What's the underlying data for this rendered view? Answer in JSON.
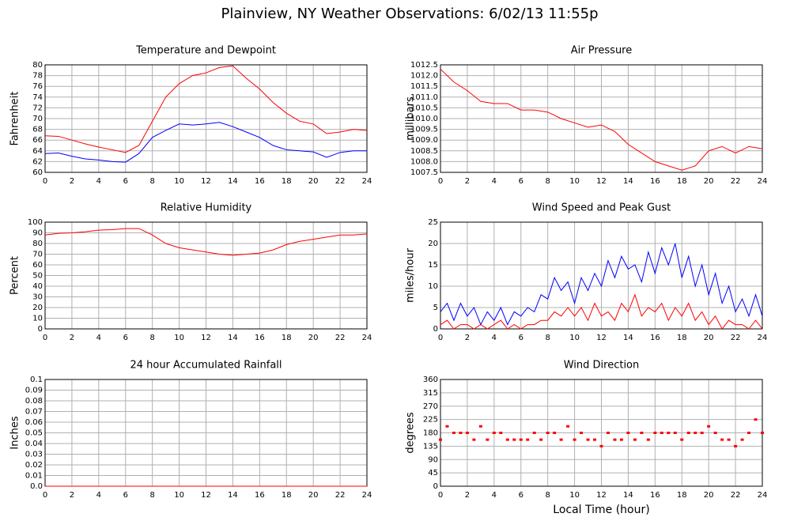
{
  "title": "Plainview, NY Weather Observations: 6/02/13 11:55p",
  "chart_data": [
    {
      "type": "line",
      "title": "Temperature and Dewpoint",
      "ylabel": "Fahrenheit",
      "x": [
        0,
        1,
        2,
        3,
        4,
        5,
        6,
        7,
        8,
        9,
        10,
        11,
        12,
        13,
        14,
        15,
        16,
        17,
        18,
        19,
        20,
        21,
        22,
        23,
        24
      ],
      "series": [
        {
          "color": "#ff0000",
          "values": [
            66.8,
            66.7,
            66,
            65.3,
            64.7,
            64.2,
            63.7,
            65,
            69.5,
            74,
            76.5,
            78,
            78.5,
            79.5,
            79.8,
            77.5,
            75.5,
            73,
            71,
            69.5,
            69,
            67.2,
            67.5,
            68,
            67.8
          ]
        },
        {
          "color": "#0000ff",
          "values": [
            63.5,
            63.6,
            63,
            62.5,
            62.3,
            62,
            61.9,
            63.5,
            66.5,
            67.8,
            69,
            68.8,
            69,
            69.3,
            68.5,
            67.5,
            66.5,
            65,
            64.2,
            64,
            63.8,
            62.8,
            63.7,
            64,
            64
          ]
        }
      ],
      "xlim": [
        0,
        24
      ],
      "xticks": [
        0,
        2,
        4,
        6,
        8,
        10,
        12,
        14,
        16,
        18,
        20,
        22,
        24
      ],
      "ylim": [
        60,
        80
      ],
      "yticks": [
        60,
        62,
        64,
        66,
        68,
        70,
        72,
        74,
        76,
        78,
        80
      ],
      "grid": true
    },
    {
      "type": "line",
      "title": "Air Pressure",
      "ylabel": "millibars",
      "x": [
        0,
        1,
        2,
        3,
        4,
        5,
        6,
        7,
        8,
        9,
        10,
        11,
        12,
        13,
        14,
        15,
        16,
        17,
        18,
        19,
        20,
        21,
        22,
        23,
        24
      ],
      "series": [
        {
          "color": "#ff0000",
          "values": [
            1012.3,
            1011.7,
            1011.3,
            1010.8,
            1010.7,
            1010.7,
            1010.4,
            1010.4,
            1010.3,
            1010.0,
            1009.8,
            1009.6,
            1009.7,
            1009.4,
            1008.8,
            1008.4,
            1008.0,
            1007.8,
            1007.6,
            1007.8,
            1008.5,
            1008.7,
            1008.4,
            1008.7,
            1008.6
          ]
        }
      ],
      "xlim": [
        0,
        24
      ],
      "xticks": [
        0,
        2,
        4,
        6,
        8,
        10,
        12,
        14,
        16,
        18,
        20,
        22,
        24
      ],
      "ylim": [
        1007.5,
        1012.5
      ],
      "yticks": [
        1007.5,
        {
          "value": 1008,
          "label": "1008.0"
        },
        1008.5,
        {
          "value": 1009,
          "label": "1009.0"
        },
        1009.5,
        {
          "value": 1010,
          "label": "1010.0"
        },
        1010.5,
        {
          "value": 1011,
          "label": "1011.0"
        },
        1011.5,
        {
          "value": 1012,
          "label": "1012.0"
        },
        1012.5
      ],
      "grid": true
    },
    {
      "type": "line",
      "title": "Relative Humidity",
      "ylabel": "Percent",
      "x": [
        0,
        1,
        2,
        3,
        4,
        5,
        6,
        7,
        8,
        9,
        10,
        11,
        12,
        13,
        14,
        15,
        16,
        17,
        18,
        19,
        20,
        21,
        22,
        23,
        24
      ],
      "series": [
        {
          "color": "#ff0000",
          "values": [
            88,
            89.5,
            90,
            91,
            92.5,
            93,
            94,
            94,
            88,
            80,
            76,
            74,
            72,
            70,
            69,
            70,
            71,
            74,
            79,
            82,
            84,
            86,
            88,
            88,
            89
          ]
        }
      ],
      "xlim": [
        0,
        24
      ],
      "xticks": [
        0,
        2,
        4,
        6,
        8,
        10,
        12,
        14,
        16,
        18,
        20,
        22,
        24
      ],
      "ylim": [
        0,
        100
      ],
      "yticks": [
        0,
        10,
        20,
        30,
        40,
        50,
        60,
        70,
        80,
        90,
        100
      ],
      "grid": true
    },
    {
      "type": "line",
      "title": "Wind Speed and Peak Gust",
      "ylabel": "miles/hour",
      "x": [
        0,
        0.5,
        1,
        1.5,
        2,
        2.5,
        3,
        3.5,
        4,
        4.5,
        5,
        5.5,
        6,
        6.5,
        7,
        7.5,
        8,
        8.5,
        9,
        9.5,
        10,
        10.5,
        11,
        11.5,
        12,
        12.5,
        13,
        13.5,
        14,
        14.5,
        15,
        15.5,
        16,
        16.5,
        17,
        17.5,
        18,
        18.5,
        19,
        19.5,
        20,
        20.5,
        21,
        21.5,
        22,
        22.5,
        23,
        23.5,
        24
      ],
      "series": [
        {
          "color": "#0000ff",
          "values": [
            4,
            6,
            2,
            6,
            3,
            5,
            1,
            4,
            2,
            5,
            1,
            4,
            3,
            5,
            4,
            8,
            7,
            12,
            9,
            11,
            6,
            12,
            9,
            13,
            10,
            16,
            12,
            17,
            14,
            15,
            11,
            18,
            13,
            19,
            15,
            20,
            12,
            17,
            10,
            15,
            8,
            13,
            6,
            10,
            4,
            7,
            3,
            8,
            3
          ]
        },
        {
          "color": "#ff0000",
          "values": [
            1,
            2,
            0,
            1,
            1,
            0,
            1,
            0,
            1,
            2,
            0,
            1,
            0,
            1,
            1,
            2,
            2,
            4,
            3,
            5,
            3,
            5,
            2,
            6,
            3,
            4,
            2,
            6,
            4,
            8,
            3,
            5,
            4,
            6,
            2,
            5,
            3,
            6,
            2,
            4,
            1,
            3,
            0,
            2,
            1,
            1,
            0,
            2,
            0
          ]
        }
      ],
      "xlim": [
        0,
        24
      ],
      "xticks": [
        0,
        2,
        4,
        6,
        8,
        10,
        12,
        14,
        16,
        18,
        20,
        22,
        24
      ],
      "ylim": [
        0,
        25
      ],
      "yticks": [
        0,
        5,
        10,
        15,
        20,
        25
      ],
      "grid": true
    },
    {
      "type": "line",
      "title": "24 hour Accumulated Rainfall",
      "ylabel": "Inches",
      "x": [
        0,
        24
      ],
      "series": [
        {
          "color": "#ff0000",
          "values": [
            0,
            0
          ]
        }
      ],
      "xlim": [
        0,
        24
      ],
      "xticks": [
        0,
        2,
        4,
        6,
        8,
        10,
        12,
        14,
        16,
        18,
        20,
        22,
        24
      ],
      "ylim": [
        0,
        0.1
      ],
      "yticks": [
        {
          "value": 0,
          "label": "0.0"
        },
        0.01,
        0.02,
        0.03,
        0.04,
        0.05,
        0.06,
        0.07,
        0.08,
        0.09,
        0.1
      ],
      "grid": true
    },
    {
      "type": "scatter",
      "title": "Wind Direction",
      "ylabel": "degrees",
      "xlabel": "Local Time (hour)",
      "x": [
        0,
        0.5,
        1,
        1.5,
        2,
        2.5,
        3,
        3.5,
        4,
        4.5,
        5,
        5.5,
        6,
        6.5,
        7,
        7.5,
        8,
        8.5,
        9,
        9.5,
        10,
        10.5,
        11,
        11.5,
        12,
        12.5,
        13,
        13.5,
        14,
        14.5,
        15,
        15.5,
        16,
        16.5,
        17,
        17.5,
        18,
        18.5,
        19,
        19.5,
        20,
        20.5,
        21,
        21.5,
        22,
        22.5,
        23,
        23.5,
        24
      ],
      "series": [
        {
          "color": "#ff0000",
          "values": [
            157,
            202,
            180,
            180,
            180,
            157,
            202,
            157,
            180,
            180,
            157,
            157,
            157,
            157,
            180,
            157,
            180,
            180,
            157,
            202,
            157,
            180,
            157,
            157,
            135,
            180,
            157,
            157,
            180,
            157,
            180,
            157,
            180,
            180,
            180,
            180,
            157,
            180,
            180,
            180,
            202,
            180,
            157,
            157,
            135,
            157,
            180,
            225,
            180
          ]
        }
      ],
      "xlim": [
        0,
        24
      ],
      "xticks": [
        0,
        2,
        4,
        6,
        8,
        10,
        12,
        14,
        16,
        18,
        20,
        22,
        24
      ],
      "ylim": [
        0,
        360
      ],
      "yticks": [
        0,
        45,
        90,
        135,
        180,
        225,
        270,
        315,
        360
      ],
      "grid": true
    }
  ]
}
